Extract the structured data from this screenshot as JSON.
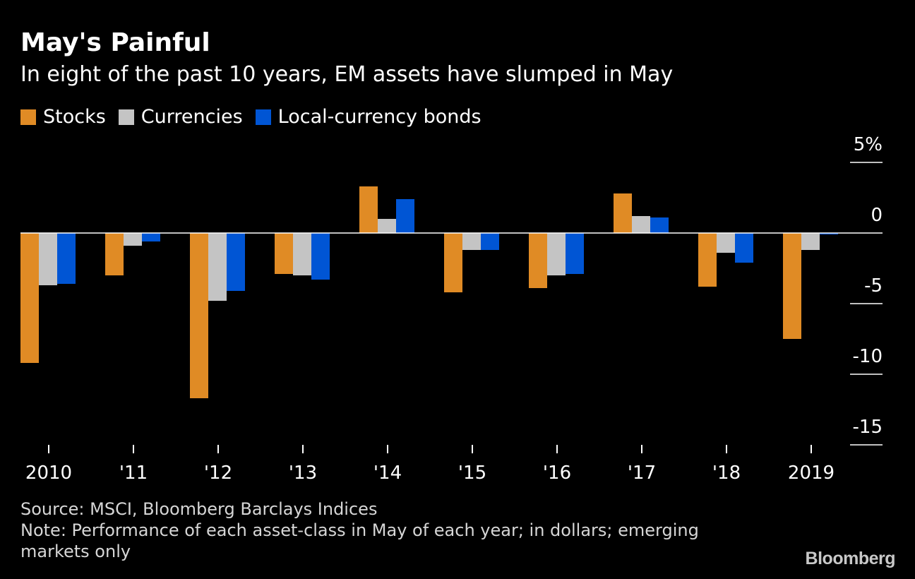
{
  "title": "May's Painful",
  "subtitle": "In eight of the past 10 years, EM assets have slumped in May",
  "legend": [
    {
      "label": "Stocks",
      "color": "#e08b25"
    },
    {
      "label": "Currencies",
      "color": "#c4c4c4"
    },
    {
      "label": "Local-currency bonds",
      "color": "#0055d4"
    }
  ],
  "source": "Source: MSCI, Bloomberg Barclays Indices",
  "note": "Note: Performance of each asset-class in May of each year; in dollars; emerging markets only",
  "brand": "Bloomberg",
  "chart_data": {
    "type": "bar",
    "categories": [
      "2010",
      "'11",
      "'12",
      "'13",
      "'14",
      "'15",
      "'16",
      "'17",
      "'18",
      "2019"
    ],
    "series": [
      {
        "name": "Stocks",
        "color": "#e08b25",
        "values": [
          -9.2,
          -3.0,
          -11.7,
          -2.9,
          3.3,
          -4.2,
          -3.9,
          2.8,
          -3.8,
          -7.5
        ]
      },
      {
        "name": "Currencies",
        "color": "#c4c4c4",
        "values": [
          -3.7,
          -0.9,
          -4.8,
          -3.0,
          1.0,
          -1.2,
          -3.0,
          1.2,
          -1.4,
          -1.2
        ]
      },
      {
        "name": "Local-currency bonds",
        "color": "#0055d4",
        "values": [
          -3.6,
          -0.6,
          -4.1,
          -3.3,
          2.4,
          -1.2,
          -2.9,
          1.1,
          -2.1,
          -0.1
        ]
      }
    ],
    "y_ticks": [
      {
        "value": 5,
        "label": "5%"
      },
      {
        "value": 0,
        "label": "0"
      },
      {
        "value": -5,
        "label": "-5"
      },
      {
        "value": -10,
        "label": "-10"
      },
      {
        "value": -15,
        "label": "-15"
      }
    ],
    "ylim": [
      -15,
      5
    ],
    "grid": false,
    "legend_position": "top-left"
  }
}
